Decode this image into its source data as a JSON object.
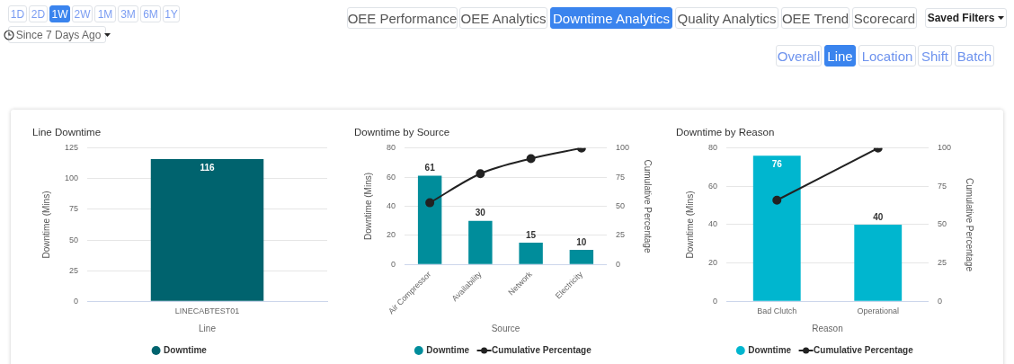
{
  "chart_data": [
    {
      "type": "other",
      "annotations": [
        "1D",
        "2D",
        "1W",
        "2W",
        "1M",
        "3M",
        "6M",
        "1Y",
        "Since 7 Days Ago",
        "OEE Performance",
        "OEE Analytics",
        "Downtime Analytics",
        "Quality Analytics",
        "OEE Trend",
        "Scorecard",
        "Saved Filters",
        "Overall",
        "Line",
        "Location",
        "Shift",
        "Batch"
      ]
    },
    {
      "type": "bar",
      "title": "Line Downtime",
      "xlabel": "Line",
      "ylabel": "Downtime (Mins)",
      "categories": [
        "LINECABTEST01"
      ],
      "series": [
        {
          "name": "Downtime",
          "color": "#00636e",
          "values": [
            116
          ]
        }
      ],
      "ylim": [
        0,
        125
      ],
      "yticks": [
        0,
        25,
        50,
        75,
        100,
        125
      ],
      "grid": "y",
      "legend": "bottom",
      "data_labels": true
    },
    {
      "type": "bar",
      "title": "Downtime by Source",
      "xlabel": "Source",
      "ylabel": "Downtime (Mins)",
      "y2label": "Cumulative Percentage",
      "categories": [
        "Air Compressor",
        "Availability",
        "Network",
        "Electricity"
      ],
      "series": [
        {
          "name": "Downtime",
          "color": "#008d9b",
          "values": [
            61,
            30,
            15,
            10
          ],
          "value_labels": [
            "61",
            "30",
            "15",
            "10"
          ]
        },
        {
          "name": "Cumulative Percentage",
          "type": "line",
          "axis": "y2",
          "color": "#222222",
          "values": [
            53,
            78,
            91,
            100
          ]
        }
      ],
      "ylim": [
        0,
        80
      ],
      "yticks": [
        0,
        20,
        40,
        60,
        80
      ],
      "y2lim": [
        0,
        100
      ],
      "y2ticks": [
        0,
        25,
        50,
        75,
        100
      ],
      "grid": "y",
      "legend": "bottom",
      "marker": "circle"
    },
    {
      "type": "bar",
      "title": "Downtime by Reason",
      "xlabel": "Reason",
      "ylabel": "Downtime (Mins)",
      "y2label": "Cumulative Percentage",
      "categories": [
        "Bad Clutch",
        "Operational"
      ],
      "series": [
        {
          "name": "Downtime",
          "color": "#00b6cf",
          "values": [
            76,
            40
          ],
          "value_labels": [
            "76",
            "40"
          ]
        },
        {
          "name": "Cumulative Percentage",
          "type": "line",
          "axis": "y2",
          "color": "#222222",
          "values": [
            66,
            100
          ]
        }
      ],
      "ylim": [
        0,
        80
      ],
      "yticks": [
        0,
        20,
        40,
        60,
        80
      ],
      "y2lim": [
        0,
        100
      ],
      "y2ticks": [
        0,
        25,
        50,
        75,
        100
      ],
      "grid": "y",
      "legend": "bottom",
      "marker": "circle"
    }
  ]
}
